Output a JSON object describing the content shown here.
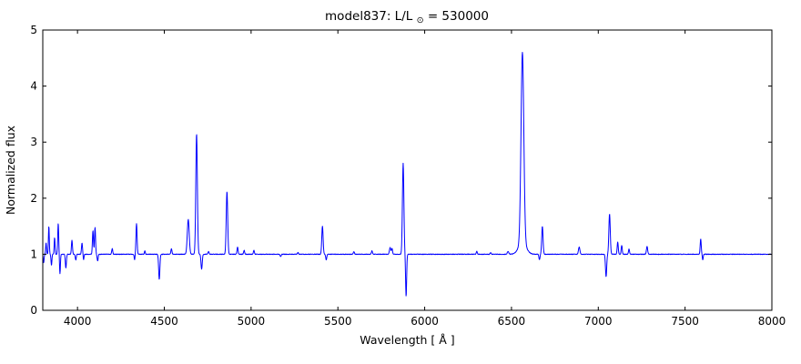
{
  "title": {
    "prefix": "model837: L/L",
    "sub": "⊙",
    "suffix": " = 530000"
  },
  "chart_data": {
    "type": "line",
    "title": "model837: L/L_sun = 530000",
    "xlabel": "Wavelength [ Å ]",
    "ylabel": "Normalized flux",
    "xlim": [
      3800,
      8000
    ],
    "ylim": [
      0,
      5
    ],
    "x_ticks": [
      4000,
      4500,
      5000,
      5500,
      6000,
      6500,
      7000,
      7500,
      8000
    ],
    "y_ticks": [
      0,
      1,
      2,
      3,
      4,
      5
    ],
    "line_color": "#0000ff",
    "grid": false,
    "legend": null,
    "continuum": 1.0,
    "sample_step": 1.5,
    "noise_amplitude": 0.01,
    "features_note": "Spectral lines: c = center wavelength (Angstrom), a = peak amplitude above/below continuum (normalized flux units), s = gaussian sigma (Angstrom)",
    "features": [
      {
        "c": 3805,
        "a": -0.15,
        "s": 2.5
      },
      {
        "c": 3819,
        "a": 0.2,
        "s": 2.5
      },
      {
        "c": 3835,
        "a": 0.5,
        "s": 2.5
      },
      {
        "c": 3850,
        "a": -0.2,
        "s": 2.5
      },
      {
        "c": 3868,
        "a": 0.3,
        "s": 2.5
      },
      {
        "c": 3889,
        "a": 0.55,
        "s": 2.8
      },
      {
        "c": 3899,
        "a": -0.35,
        "s": 2.5
      },
      {
        "c": 3933,
        "a": -0.25,
        "s": 3
      },
      {
        "c": 3968,
        "a": 0.25,
        "s": 3
      },
      {
        "c": 3990,
        "a": -0.1,
        "s": 3
      },
      {
        "c": 4026,
        "a": 0.2,
        "s": 3
      },
      {
        "c": 4035,
        "a": -0.1,
        "s": 2.5
      },
      {
        "c": 4089,
        "a": 0.42,
        "s": 3
      },
      {
        "c": 4101,
        "a": 0.48,
        "s": 3
      },
      {
        "c": 4116,
        "a": -0.12,
        "s": 3
      },
      {
        "c": 4200,
        "a": 0.1,
        "s": 3
      },
      {
        "c": 4329,
        "a": -0.1,
        "s": 2.5
      },
      {
        "c": 4340,
        "a": 0.55,
        "s": 3.2
      },
      {
        "c": 4388,
        "a": 0.06,
        "s": 2.5
      },
      {
        "c": 4471,
        "a": -0.45,
        "s": 3.5
      },
      {
        "c": 4541,
        "a": 0.1,
        "s": 3
      },
      {
        "c": 4638,
        "a": 0.62,
        "s": 5.5
      },
      {
        "c": 4686,
        "a": 2.15,
        "s": 4.5
      },
      {
        "c": 4715,
        "a": -0.27,
        "s": 3.5
      },
      {
        "c": 4755,
        "a": 0.05,
        "s": 3
      },
      {
        "c": 4861,
        "a": 1.12,
        "s": 4.2
      },
      {
        "c": 4922,
        "a": 0.13,
        "s": 3
      },
      {
        "c": 4960,
        "a": 0.07,
        "s": 3
      },
      {
        "c": 5016,
        "a": 0.07,
        "s": 3
      },
      {
        "c": 5170,
        "a": -0.04,
        "s": 3
      },
      {
        "c": 5270,
        "a": 0.03,
        "s": 3
      },
      {
        "c": 5411,
        "a": 0.5,
        "s": 3.8
      },
      {
        "c": 5433,
        "a": -0.1,
        "s": 3
      },
      {
        "c": 5592,
        "a": 0.05,
        "s": 3
      },
      {
        "c": 5696,
        "a": 0.06,
        "s": 3
      },
      {
        "c": 5801,
        "a": 0.12,
        "s": 4
      },
      {
        "c": 5812,
        "a": 0.1,
        "s": 3
      },
      {
        "c": 5876,
        "a": 1.62,
        "s": 4.2
      },
      {
        "c": 5893,
        "a": -0.75,
        "s": 3
      },
      {
        "c": 6300,
        "a": 0.05,
        "s": 3
      },
      {
        "c": 6380,
        "a": 0.03,
        "s": 3
      },
      {
        "c": 6480,
        "a": 0.05,
        "s": 4
      },
      {
        "c": 6563,
        "a": 3.4,
        "s": 8
      },
      {
        "c": 6563,
        "a": 0.2,
        "s": 22
      },
      {
        "c": 6661,
        "a": -0.1,
        "s": 3
      },
      {
        "c": 6678,
        "a": 0.5,
        "s": 3.8
      },
      {
        "c": 6890,
        "a": 0.13,
        "s": 4
      },
      {
        "c": 7045,
        "a": -0.4,
        "s": 3.5
      },
      {
        "c": 7065,
        "a": 0.72,
        "s": 4
      },
      {
        "c": 7112,
        "a": 0.22,
        "s": 3
      },
      {
        "c": 7135,
        "a": 0.16,
        "s": 3
      },
      {
        "c": 7177,
        "a": 0.09,
        "s": 3
      },
      {
        "c": 7281,
        "a": 0.14,
        "s": 3.5
      },
      {
        "c": 7590,
        "a": 0.27,
        "s": 3
      },
      {
        "c": 7602,
        "a": -0.1,
        "s": 2.5
      }
    ]
  }
}
